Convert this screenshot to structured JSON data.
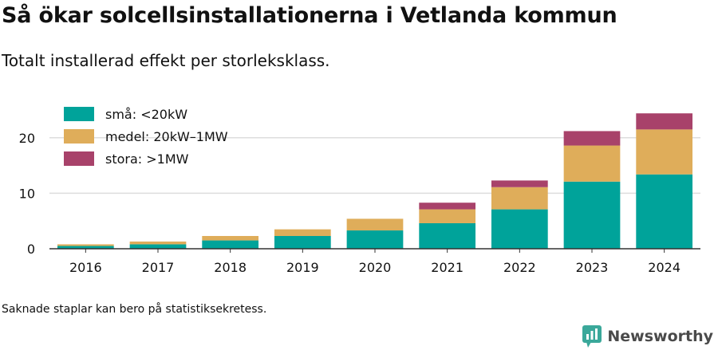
{
  "header": {
    "title": "Så ökar solcellsinstallationerna i Vetlanda kommun",
    "subtitle": "Totalt installerad effekt per storleksklass."
  },
  "footer": {
    "note": "Saknade staplar kan bero på statistiksekretess.",
    "brand": "Newsworthy"
  },
  "colors": {
    "text": "#111111",
    "grid": "#dddddd",
    "axis": "#333333",
    "brand_icon": "#3aa89a",
    "brand_text": "#4a4a4a"
  },
  "chart_data": {
    "type": "bar",
    "stacked": true,
    "categories": [
      "2016",
      "2017",
      "2018",
      "2019",
      "2020",
      "2021",
      "2022",
      "2023",
      "2024"
    ],
    "series": [
      {
        "name": "små: <20kW",
        "color": "#00a39a",
        "values": [
          0.5,
          0.8,
          1.5,
          2.3,
          3.3,
          4.6,
          7.1,
          12.1,
          13.4
        ]
      },
      {
        "name": "medel: 20kW–1MW",
        "color": "#dfad5a",
        "values": [
          0.3,
          0.5,
          0.8,
          1.2,
          2.1,
          2.5,
          4.0,
          6.5,
          8.1
        ]
      },
      {
        "name": "stora: >1MW",
        "color": "#a8426a",
        "values": [
          0,
          0,
          0,
          0,
          0,
          1.2,
          1.2,
          2.6,
          2.9
        ]
      }
    ],
    "yticks": [
      0,
      10,
      20
    ],
    "ylim": [
      0,
      25
    ],
    "grid": true,
    "legend": "top-left"
  }
}
